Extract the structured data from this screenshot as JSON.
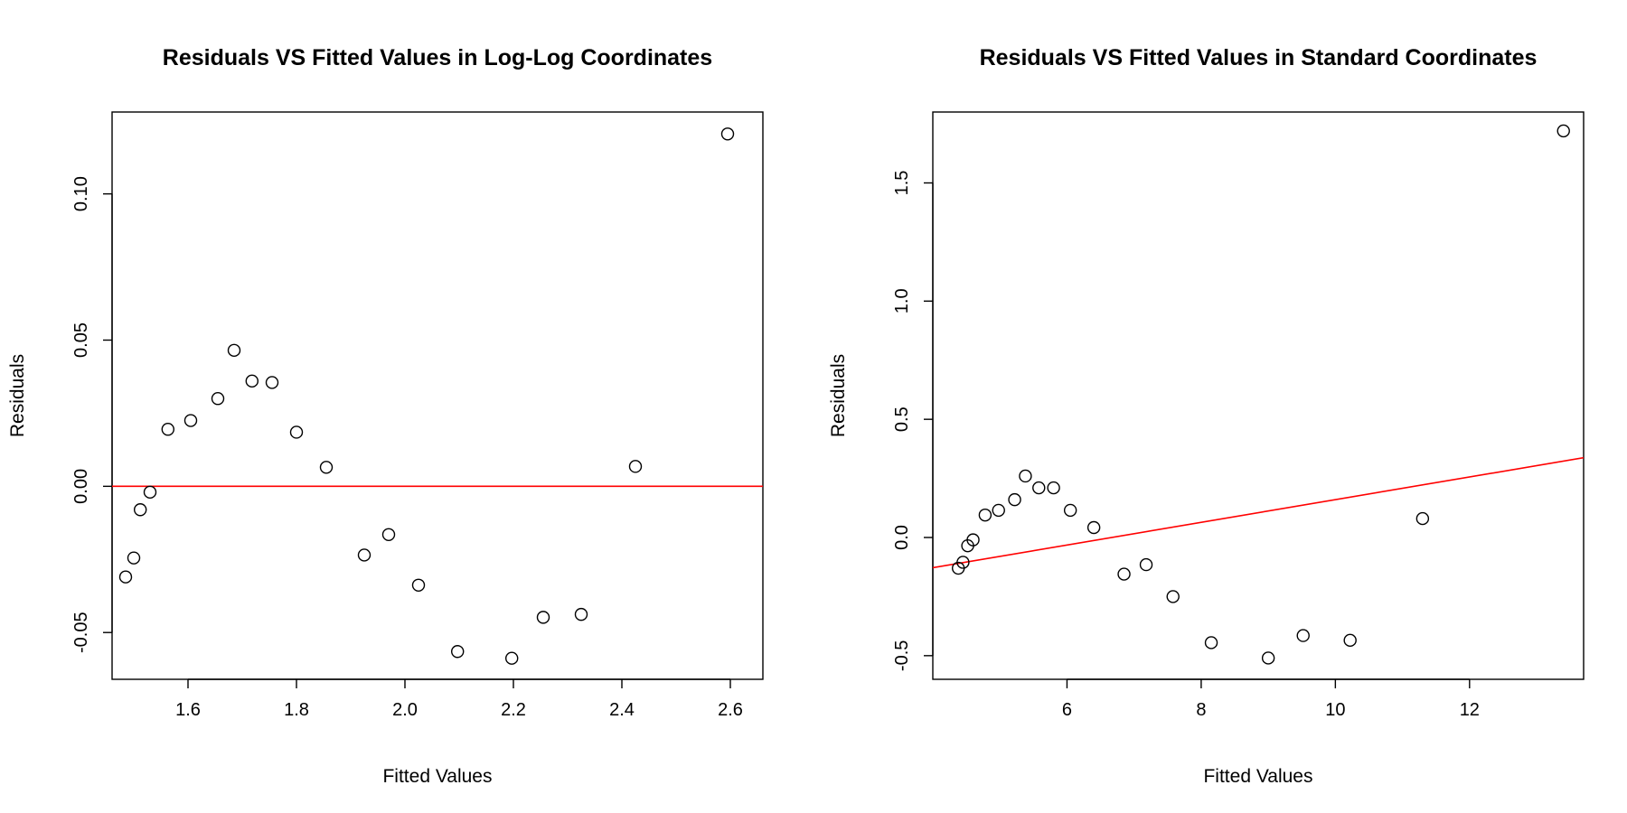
{
  "chart_data": [
    {
      "type": "scatter",
      "title": "Residuals VS Fitted Values in Log-Log Coordinates",
      "xlabel": "Fitted Values",
      "ylabel": "Residuals",
      "xlim": [
        1.46,
        2.66
      ],
      "ylim": [
        -0.066,
        0.128
      ],
      "xticks": [
        1.6,
        1.8,
        2.0,
        2.2,
        2.4,
        2.6
      ],
      "xtick_labels": [
        "1.6",
        "1.8",
        "2.0",
        "2.2",
        "2.4",
        "2.6"
      ],
      "yticks": [
        -0.05,
        0.0,
        0.05,
        0.1
      ],
      "ytick_labels": [
        "-0.05",
        "0.00",
        "0.05",
        "0.10"
      ],
      "grid": false,
      "point_color": "#000000",
      "line_color": "#ff0000",
      "x": [
        1.485,
        1.5,
        1.512,
        1.53,
        1.563,
        1.605,
        1.655,
        1.685,
        1.718,
        1.755,
        1.8,
        1.855,
        1.925,
        1.97,
        2.025,
        2.097,
        2.197,
        2.255,
        2.325,
        2.425,
        2.595
      ],
      "y": [
        -0.031,
        -0.0245,
        -0.008,
        -0.002,
        0.0195,
        0.0225,
        0.03,
        0.0465,
        0.036,
        0.0355,
        0.0185,
        0.0065,
        -0.0235,
        -0.0165,
        -0.0338,
        -0.0565,
        -0.0588,
        -0.0448,
        -0.0438,
        0.0068,
        0.1205
      ],
      "reference_line": {
        "intercept": 0.0,
        "slope": 0.0
      }
    },
    {
      "type": "scatter",
      "title": "Residuals VS Fitted Values in Standard Coordinates",
      "xlabel": "Fitted Values",
      "ylabel": "Residuals",
      "xlim": [
        4.0,
        13.7
      ],
      "ylim": [
        -0.6,
        1.8
      ],
      "xticks": [
        6,
        8,
        10,
        12
      ],
      "xtick_labels": [
        "6",
        "8",
        "10",
        "12"
      ],
      "yticks": [
        -0.5,
        0.0,
        0.5,
        1.0,
        1.5
      ],
      "ytick_labels": [
        "-0.5",
        "0.0",
        "0.5",
        "1.0",
        "1.5"
      ],
      "grid": false,
      "point_color": "#000000",
      "line_color": "#ff0000",
      "x": [
        4.38,
        4.45,
        4.52,
        4.6,
        4.78,
        4.98,
        5.22,
        5.38,
        5.58,
        5.8,
        6.05,
        6.4,
        6.85,
        7.18,
        7.58,
        8.15,
        9.0,
        9.52,
        10.22,
        11.3,
        13.4
      ],
      "y": [
        -0.13,
        -0.105,
        -0.035,
        -0.01,
        0.095,
        0.115,
        0.16,
        0.26,
        0.21,
        0.21,
        0.115,
        0.042,
        -0.155,
        -0.115,
        -0.25,
        -0.445,
        -0.51,
        -0.415,
        -0.435,
        0.08,
        1.72
      ],
      "reference_line": {
        "intercept": -0.32,
        "slope": 0.048
      }
    }
  ]
}
